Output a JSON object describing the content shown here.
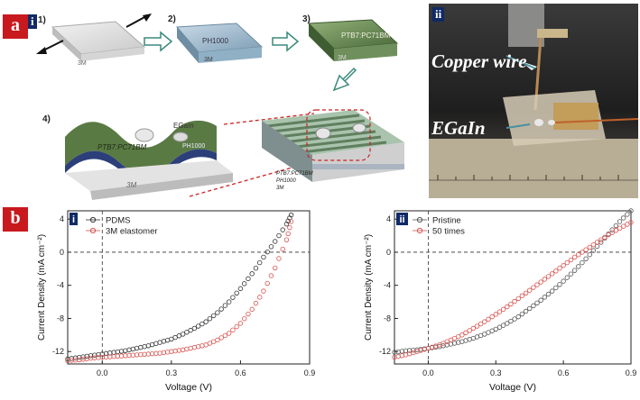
{
  "panel_a": {
    "label": "a",
    "sub_i": "i",
    "sub_ii": "ii",
    "steps": [
      "1)",
      "2)",
      "3)",
      "4)"
    ],
    "layer_labels": {
      "substrate": "3M",
      "ph1000": "PH1000",
      "active": "PTB7:PC71BM",
      "detail_active": "PTB7:PC71BM",
      "detail_ph1000": "PH1000",
      "detail_3m": "3M",
      "egain": "EGaIn"
    },
    "photo_labels": {
      "copper": "Copper wire",
      "egain": "EGaIn"
    }
  },
  "panel_b": {
    "label": "b"
  },
  "chart_data": [
    {
      "type": "scatter",
      "sub_label": "i",
      "xlabel": "Voltage (V)",
      "ylabel": "Current Density (mA cm⁻²)",
      "xlim": [
        -0.15,
        0.9
      ],
      "ylim": [
        -13.5,
        5
      ],
      "xticks": [
        "0.0",
        "0.3",
        "0.6",
        "0.9"
      ],
      "yticks": [
        "4",
        "0",
        "-4",
        "-8",
        "-12"
      ],
      "legend_position": "top-left",
      "series": [
        {
          "name": "PDMS",
          "color": "#333333",
          "x": [
            -0.15,
            -0.1,
            -0.05,
            0,
            0.05,
            0.1,
            0.15,
            0.2,
            0.25,
            0.3,
            0.35,
            0.4,
            0.45,
            0.5,
            0.55,
            0.6,
            0.65,
            0.7,
            0.75,
            0.8,
            0.82
          ],
          "y": [
            -12.9,
            -12.7,
            -12.5,
            -12.3,
            -12.1,
            -11.9,
            -11.6,
            -11.3,
            -10.9,
            -10.5,
            -9.9,
            -9.2,
            -8.4,
            -7.3,
            -6.0,
            -4.4,
            -2.6,
            -0.6,
            1.3,
            3.4,
            4.5
          ]
        },
        {
          "name": "3M elastomer",
          "color": "#d9534f",
          "x": [
            -0.15,
            -0.1,
            -0.05,
            0,
            0.05,
            0.1,
            0.15,
            0.2,
            0.25,
            0.3,
            0.35,
            0.4,
            0.45,
            0.5,
            0.55,
            0.6,
            0.65,
            0.7,
            0.75,
            0.8,
            0.82
          ],
          "y": [
            -13.1,
            -13.0,
            -12.8,
            -12.7,
            -12.6,
            -12.5,
            -12.4,
            -12.3,
            -12.2,
            -12.0,
            -11.8,
            -11.5,
            -11.2,
            -10.6,
            -9.8,
            -8.6,
            -6.9,
            -4.7,
            -1.9,
            1.5,
            3.7
          ]
        }
      ]
    },
    {
      "type": "scatter",
      "sub_label": "ii",
      "xlabel": "Voltage (V)",
      "ylabel": "Current Density (mA cm⁻²)",
      "xlim": [
        -0.15,
        0.9
      ],
      "ylim": [
        -13.5,
        5
      ],
      "xticks": [
        "0.0",
        "0.3",
        "0.6",
        "0.9"
      ],
      "yticks": [
        "4",
        "0",
        "-4",
        "-8",
        "-12"
      ],
      "legend_position": "top-left",
      "series": [
        {
          "name": "Pristine",
          "color": "#555555",
          "x": [
            -0.15,
            -0.1,
            -0.05,
            0,
            0.05,
            0.1,
            0.15,
            0.2,
            0.25,
            0.3,
            0.35,
            0.4,
            0.45,
            0.5,
            0.55,
            0.6,
            0.65,
            0.7,
            0.75,
            0.8,
            0.85,
            0.9
          ],
          "y": [
            -12.1,
            -11.9,
            -11.8,
            -11.6,
            -11.4,
            -11.1,
            -10.8,
            -10.4,
            -9.9,
            -9.3,
            -8.6,
            -7.8,
            -6.8,
            -5.8,
            -4.7,
            -3.5,
            -2.2,
            -0.8,
            0.7,
            2.2,
            3.7,
            5.0
          ]
        },
        {
          "name": "50 times",
          "color": "#d9534f",
          "x": [
            -0.15,
            -0.1,
            -0.05,
            0,
            0.05,
            0.1,
            0.15,
            0.2,
            0.25,
            0.3,
            0.35,
            0.4,
            0.45,
            0.5,
            0.55,
            0.6,
            0.65,
            0.7,
            0.75,
            0.8,
            0.85,
            0.9
          ],
          "y": [
            -12.7,
            -12.4,
            -12.0,
            -11.6,
            -11.2,
            -10.6,
            -10.0,
            -9.2,
            -8.4,
            -7.5,
            -6.6,
            -5.6,
            -4.6,
            -3.6,
            -2.6,
            -1.6,
            -0.6,
            0.3,
            1.2,
            2.1,
            2.9,
            3.6
          ]
        }
      ]
    }
  ]
}
